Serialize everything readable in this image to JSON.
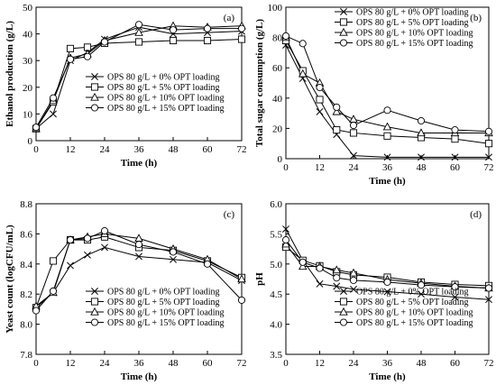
{
  "chart_data": [
    {
      "id": "a",
      "type": "line",
      "panel_label": "(a)",
      "xlabel": "Time (h)",
      "ylabel": "Ethanol production (g/L)",
      "x": [
        0,
        6,
        12,
        18,
        24,
        36,
        48,
        60,
        72
      ],
      "xticks": [
        0,
        12,
        24,
        36,
        48,
        60,
        72
      ],
      "xlim": [
        0,
        72
      ],
      "ylim": [
        0,
        50
      ],
      "yticks": [
        0,
        10,
        20,
        30,
        40,
        50
      ],
      "ytick_labels": [
        "0",
        "10",
        "20",
        "30",
        "40",
        "50"
      ],
      "legend_position": "bottom-right",
      "series": [
        {
          "name": "OPS 80 g/L + 0% OPT loading",
          "marker": "x",
          "values": [
            4.5,
            10,
            30,
            33,
            38,
            42.5,
            40,
            40.5,
            41
          ]
        },
        {
          "name": "OPS 80 g/L + 5% OPT loading",
          "marker": "square",
          "values": [
            4.5,
            14.5,
            34.5,
            35,
            36.5,
            37,
            37.5,
            37.5,
            38
          ]
        },
        {
          "name": "OPS 80 g/L + 10% OPT loading",
          "marker": "triangle",
          "values": [
            4.5,
            15,
            31,
            32.5,
            37.5,
            40.5,
            43,
            42.5,
            43
          ]
        },
        {
          "name": "OPS 80 g/L + 15% OPT loading",
          "marker": "circle",
          "values": [
            5,
            16,
            30.5,
            31.5,
            37,
            43.5,
            41.5,
            42,
            42
          ]
        }
      ]
    },
    {
      "id": "b",
      "type": "line",
      "panel_label": "(b)",
      "xlabel": "Time (h)",
      "ylabel": "Total sugar consumption (g/L)",
      "x": [
        0,
        6,
        12,
        18,
        24,
        36,
        48,
        60,
        72
      ],
      "xticks": [
        0,
        12,
        24,
        36,
        48,
        60,
        72
      ],
      "xlim": [
        0,
        72
      ],
      "ylim": [
        0,
        100
      ],
      "yticks": [
        0,
        20,
        40,
        60,
        80,
        100
      ],
      "ytick_labels": [
        "0",
        "20",
        "40",
        "60",
        "80",
        "100"
      ],
      "legend_position": "top-right",
      "series": [
        {
          "name": "OPS 80 g/L + 0% OPT loading",
          "marker": "x",
          "values": [
            75,
            53,
            31,
            16,
            2,
            1,
            1,
            1,
            1
          ]
        },
        {
          "name": "OPS 80 g/L + 5% OPT loading",
          "marker": "square",
          "values": [
            78,
            58,
            39,
            19,
            17,
            15,
            14,
            13,
            10
          ]
        },
        {
          "name": "OPS 80 g/L + 10% OPT loading",
          "marker": "triangle",
          "values": [
            80,
            56,
            50,
            31,
            26,
            21,
            17,
            17,
            17
          ]
        },
        {
          "name": "OPS 80 g/L + 15% OPT loading",
          "marker": "circle",
          "values": [
            81,
            76,
            47,
            34,
            22,
            32,
            25,
            19,
            18
          ]
        }
      ]
    },
    {
      "id": "c",
      "type": "line",
      "panel_label": "(c)",
      "xlabel": "Time (h)",
      "ylabel": "Yeast count (logCFU/mL)",
      "x": [
        0,
        6,
        12,
        18,
        24,
        36,
        48,
        60,
        72
      ],
      "xticks": [
        0,
        12,
        24,
        36,
        48,
        60,
        72
      ],
      "xlim": [
        0,
        72
      ],
      "ylim": [
        7.8,
        8.8
      ],
      "yticks": [
        7.8,
        8.0,
        8.2,
        8.4,
        8.6,
        8.8
      ],
      "ytick_labels": [
        "7.8",
        "8.0",
        "8.2",
        "8.4",
        "8.6",
        "8.8"
      ],
      "legend_position": "bottom-right",
      "series": [
        {
          "name": "OPS 80 g/L + 0% OPT loading",
          "marker": "x",
          "values": [
            8.11,
            8.21,
            8.39,
            8.46,
            8.51,
            8.45,
            8.43,
            8.41,
            8.29
          ]
        },
        {
          "name": "OPS 80 g/L + 5% OPT loading",
          "marker": "square",
          "values": [
            8.11,
            8.42,
            8.56,
            8.56,
            8.58,
            8.51,
            8.49,
            8.42,
            8.31
          ]
        },
        {
          "name": "OPS 80 g/L + 10% OPT loading",
          "marker": "triangle",
          "values": [
            8.12,
            8.21,
            8.56,
            8.58,
            8.6,
            8.57,
            8.5,
            8.43,
            8.3
          ]
        },
        {
          "name": "OPS 80 g/L + 15% OPT loading",
          "marker": "circle",
          "values": [
            8.09,
            8.22,
            8.56,
            8.57,
            8.62,
            8.53,
            8.48,
            8.4,
            8.16
          ]
        }
      ]
    },
    {
      "id": "d",
      "type": "line",
      "panel_label": "(d)",
      "xlabel": "Time (h)",
      "ylabel": "pH",
      "x": [
        0,
        6,
        12,
        18,
        24,
        36,
        48,
        60,
        72
      ],
      "xticks": [
        0,
        12,
        24,
        36,
        48,
        60,
        72
      ],
      "xlim": [
        0,
        72
      ],
      "ylim": [
        3.5,
        6.0
      ],
      "yticks": [
        3.5,
        4.0,
        4.5,
        5.0,
        5.5,
        6.0
      ],
      "ytick_labels": [
        "3.5",
        "4.0",
        "4.5",
        "5.0",
        "5.5",
        "6.0"
      ],
      "legend_position": "bottom-right",
      "series": [
        {
          "name": "OPS 80 g/L + 0% OPT loading",
          "marker": "x",
          "values": [
            5.58,
            5.06,
            4.67,
            4.63,
            4.58,
            4.54,
            4.5,
            4.45,
            4.41
          ]
        },
        {
          "name": "OPS 80 g/L + 5% OPT loading",
          "marker": "square",
          "values": [
            5.28,
            5.06,
            4.97,
            4.87,
            4.82,
            4.78,
            4.7,
            4.66,
            4.64
          ]
        },
        {
          "name": "OPS 80 g/L + 10% OPT loading",
          "marker": "triangle",
          "values": [
            5.33,
            4.96,
            4.96,
            4.9,
            4.85,
            4.74,
            4.68,
            4.63,
            4.6
          ]
        },
        {
          "name": "OPS 80 g/L + 15% OPT loading",
          "marker": "circle",
          "values": [
            5.4,
            5.03,
            4.93,
            4.77,
            4.73,
            4.7,
            4.65,
            4.62,
            4.6
          ]
        }
      ]
    }
  ]
}
